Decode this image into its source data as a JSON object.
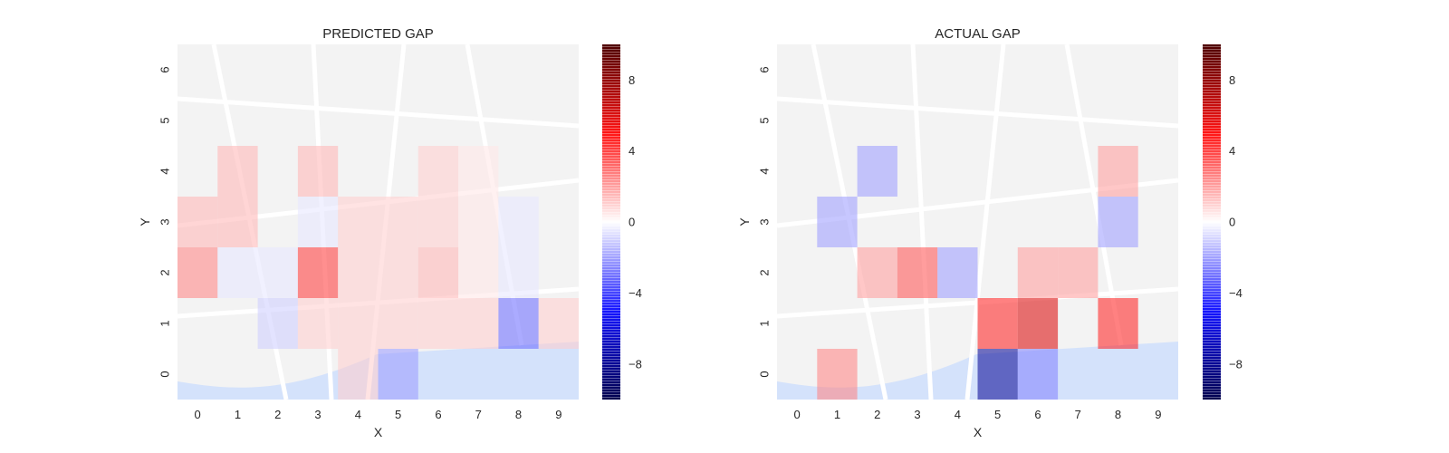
{
  "chart_data": [
    {
      "type": "heatmap",
      "title": "PREDICTED GAP",
      "xlabel": "X",
      "ylabel": "Y",
      "x_ticks": [
        "0",
        "1",
        "2",
        "3",
        "4",
        "5",
        "6",
        "7",
        "8",
        "9"
      ],
      "y_ticks": [
        "0",
        "1",
        "2",
        "3",
        "4",
        "5",
        "6"
      ],
      "xlim": [
        -0.5,
        9.5
      ],
      "ylim": [
        -0.5,
        6.5
      ],
      "colormap": "seismic",
      "vmin": -10,
      "vmax": 10,
      "colorbar_ticks": [
        "8",
        "4",
        "0",
        "−4",
        "−8"
      ],
      "background": "street map overlay",
      "grid": false,
      "cells": [
        {
          "x": 0,
          "y": 3,
          "value": 1.5
        },
        {
          "x": 0,
          "y": 2,
          "value": 2.5
        },
        {
          "x": 1,
          "y": 4,
          "value": 1.5
        },
        {
          "x": 1,
          "y": 3,
          "value": 1.5
        },
        {
          "x": 1,
          "y": 2,
          "value": -0.5
        },
        {
          "x": 2,
          "y": 2,
          "value": -0.5
        },
        {
          "x": 2,
          "y": 1,
          "value": -1.0
        },
        {
          "x": 3,
          "y": 4,
          "value": 1.5
        },
        {
          "x": 3,
          "y": 3,
          "value": -0.5
        },
        {
          "x": 3,
          "y": 2,
          "value": 4.0
        },
        {
          "x": 3,
          "y": 1,
          "value": 1.0
        },
        {
          "x": 4,
          "y": 3,
          "value": 1.0
        },
        {
          "x": 4,
          "y": 2,
          "value": 1.0
        },
        {
          "x": 4,
          "y": 1,
          "value": 1.0
        },
        {
          "x": 4,
          "y": 0,
          "value": 1.0
        },
        {
          "x": 5,
          "y": 3,
          "value": 1.0
        },
        {
          "x": 5,
          "y": 2,
          "value": 1.0
        },
        {
          "x": 5,
          "y": 1,
          "value": 1.0
        },
        {
          "x": 5,
          "y": 0,
          "value": -2.0
        },
        {
          "x": 6,
          "y": 4,
          "value": 1.0
        },
        {
          "x": 6,
          "y": 3,
          "value": 1.0
        },
        {
          "x": 6,
          "y": 2,
          "value": 1.5
        },
        {
          "x": 6,
          "y": 1,
          "value": 1.0
        },
        {
          "x": 7,
          "y": 4,
          "value": 0.5
        },
        {
          "x": 7,
          "y": 3,
          "value": 0.5
        },
        {
          "x": 7,
          "y": 2,
          "value": 0.5
        },
        {
          "x": 7,
          "y": 1,
          "value": 1.0
        },
        {
          "x": 8,
          "y": 3,
          "value": -0.5
        },
        {
          "x": 8,
          "y": 2,
          "value": -0.5
        },
        {
          "x": 8,
          "y": 1,
          "value": -3.0
        },
        {
          "x": 9,
          "y": 1,
          "value": 1.0
        }
      ]
    },
    {
      "type": "heatmap",
      "title": "ACTUAL GAP",
      "xlabel": "X",
      "ylabel": "Y",
      "x_ticks": [
        "0",
        "1",
        "2",
        "3",
        "4",
        "5",
        "6",
        "7",
        "8",
        "9"
      ],
      "y_ticks": [
        "0",
        "1",
        "2",
        "3",
        "4",
        "5",
        "6"
      ],
      "xlim": [
        -0.5,
        9.5
      ],
      "ylim": [
        -0.5,
        6.5
      ],
      "colormap": "seismic",
      "vmin": -10,
      "vmax": 10,
      "colorbar_ticks": [
        "8",
        "4",
        "0",
        "−4",
        "−8"
      ],
      "background": "street map overlay",
      "grid": false,
      "cells": [
        {
          "x": 2,
          "y": 4,
          "value": -2.0
        },
        {
          "x": 1,
          "y": 3,
          "value": -2.0
        },
        {
          "x": 2,
          "y": 2,
          "value": 2.0
        },
        {
          "x": 3,
          "y": 2,
          "value": 3.5
        },
        {
          "x": 4,
          "y": 2,
          "value": -2.0
        },
        {
          "x": 6,
          "y": 2,
          "value": 2.0
        },
        {
          "x": 7,
          "y": 2,
          "value": 2.0
        },
        {
          "x": 5,
          "y": 1,
          "value": 4.5
        },
        {
          "x": 6,
          "y": 1,
          "value": 6.0
        },
        {
          "x": 8,
          "y": 1,
          "value": 4.5
        },
        {
          "x": 1,
          "y": 0,
          "value": 2.5
        },
        {
          "x": 5,
          "y": 0,
          "value": -8.0
        },
        {
          "x": 6,
          "y": 0,
          "value": -2.5
        },
        {
          "x": 8,
          "y": 4,
          "value": 2.0
        },
        {
          "x": 8,
          "y": 3,
          "value": -2.0
        }
      ]
    }
  ]
}
